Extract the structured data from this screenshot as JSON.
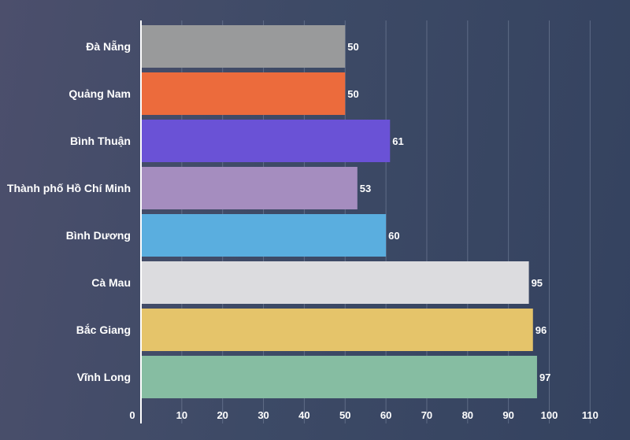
{
  "chart_data": {
    "type": "bar",
    "orientation": "horizontal",
    "categories": [
      "Đà Nẵng",
      "Quảng Nam",
      "Bình Thuận",
      "Thành phố Hồ Chí Minh",
      "Bình Dương",
      "Cà Mau",
      "Bắc Giang",
      "Vĩnh Long"
    ],
    "values": [
      50,
      50,
      61,
      53,
      60,
      95,
      96,
      97
    ],
    "colors": [
      "#999a9b",
      "#ec6b3c",
      "#6a52d6",
      "#a58dbf",
      "#5aaedf",
      "#dcdcdf",
      "#e5c46a",
      "#86bda2"
    ],
    "xlim": [
      0,
      110
    ],
    "xticks": [
      0,
      10,
      20,
      30,
      40,
      50,
      60,
      70,
      80,
      90,
      100,
      110
    ],
    "grid": true,
    "legend": "none"
  }
}
